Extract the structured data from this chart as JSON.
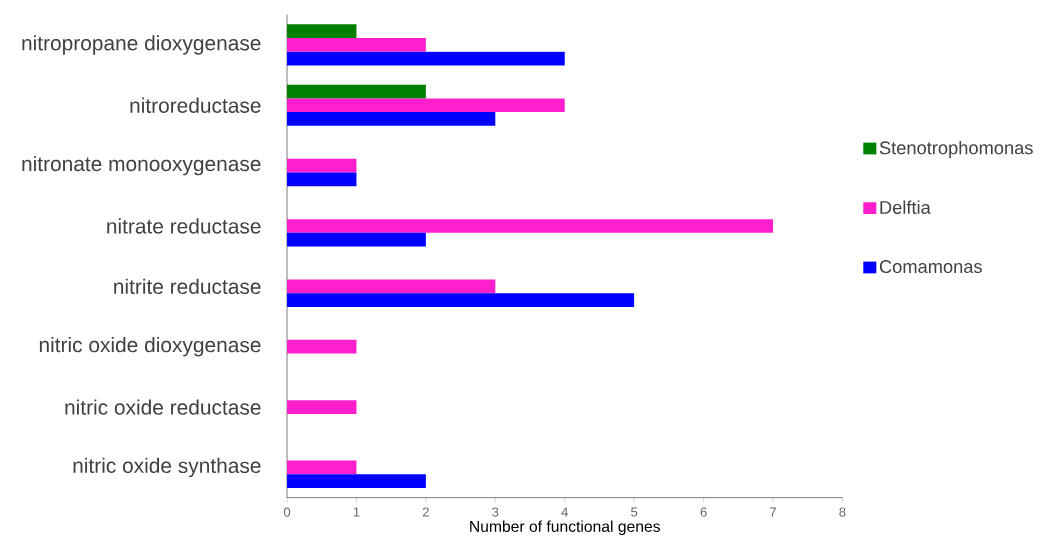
{
  "chart_data": {
    "type": "bar",
    "orientation": "horizontal",
    "xlabel": "Number of functional genes",
    "categories": [
      "nitropropane dioxygenase",
      "nitroreductase",
      "nitronate monooxygenase",
      "nitrate reductase",
      "nitrite reductase",
      "nitric oxide dioxygenase",
      "nitric oxide reductase",
      "nitric oxide synthase"
    ],
    "series": [
      {
        "name": "Stenotrophomonas",
        "color": "#008000",
        "values": [
          1,
          2,
          null,
          null,
          null,
          null,
          null,
          null
        ]
      },
      {
        "name": "Delftia",
        "color": "#ff1fcc",
        "values": [
          2,
          4,
          1,
          7,
          3,
          1,
          1,
          1
        ]
      },
      {
        "name": "Comamonas",
        "color": "#0000ff",
        "values": [
          4,
          3,
          1,
          2,
          5,
          null,
          null,
          2
        ]
      }
    ],
    "xlim": [
      0,
      8
    ],
    "xticks": [
      0,
      1,
      2,
      3,
      4,
      5,
      6,
      7,
      8
    ],
    "grid": false,
    "legend": "right"
  }
}
